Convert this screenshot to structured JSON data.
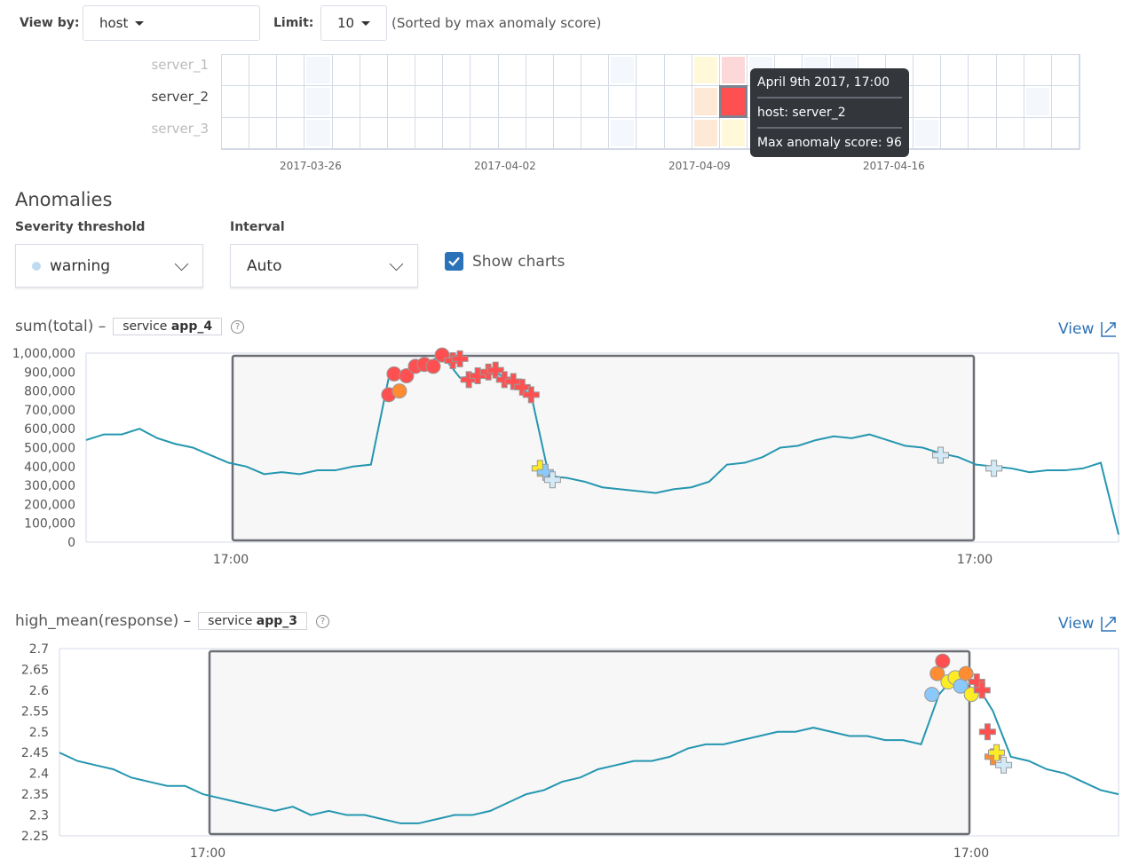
{
  "controls": {
    "view_by_label": "View by:",
    "view_by_value": "host",
    "limit_label": "Limit:",
    "limit_value": "10",
    "sorted_note": "(Sorted by max anomaly score)"
  },
  "heatmap": {
    "rows": [
      "server_1",
      "server_2",
      "server_3"
    ],
    "selected_row": "server_2",
    "columns": 31,
    "x_ticks": [
      "2017-03-26",
      "2017-04-02",
      "2017-04-09",
      "2017-04-16"
    ],
    "cells": [
      {
        "row": 0,
        "col": 3,
        "color": "#f4f8fc"
      },
      {
        "row": 1,
        "col": 3,
        "color": "#f4f8fc"
      },
      {
        "row": 2,
        "col": 3,
        "color": "#f4f8fc"
      },
      {
        "row": 0,
        "col": 14,
        "color": "#f4f8fc"
      },
      {
        "row": 2,
        "col": 14,
        "color": "#f4f8fc"
      },
      {
        "row": 0,
        "col": 17,
        "color": "#fff9d9"
      },
      {
        "row": 1,
        "col": 17,
        "color": "#fde9d6"
      },
      {
        "row": 2,
        "col": 17,
        "color": "#fde9d6"
      },
      {
        "row": 0,
        "col": 18,
        "color": "#fdd8d8"
      },
      {
        "row": 1,
        "col": 18,
        "color": "#fe5050"
      },
      {
        "row": 2,
        "col": 18,
        "color": "#fff9d9"
      },
      {
        "row": 0,
        "col": 19,
        "color": "#f4f8fc"
      },
      {
        "row": 0,
        "col": 21,
        "color": "#f4f8fc"
      },
      {
        "row": 0,
        "col": 22,
        "color": "#f4f8fc"
      },
      {
        "row": 2,
        "col": 25,
        "color": "#f4f8fc"
      },
      {
        "row": 1,
        "col": 29,
        "color": "#f4f8fc"
      }
    ],
    "tooltip": {
      "time": "April 9th 2017, 17:00",
      "entity": "host: server_2",
      "score": "Max anomaly score: 96"
    }
  },
  "anomalies": {
    "heading": "Anomalies",
    "severity_label": "Severity threshold",
    "severity_value": "warning",
    "severity_dot_color": "#bfdbf1",
    "interval_label": "Interval",
    "interval_value": "Auto",
    "show_charts_label": "Show charts",
    "show_charts_checked": true
  },
  "charts": [
    {
      "title": "sum(total) –",
      "entity_prefix": "service ",
      "entity_value": "app_4",
      "view_label": "View",
      "chart_data": {
        "type": "line",
        "ylim": [
          0,
          1000000
        ],
        "y_ticks": [
          "0",
          "100,000",
          "200,000",
          "300,000",
          "400,000",
          "500,000",
          "600,000",
          "700,000",
          "800,000",
          "900,000",
          "1,000,000"
        ],
        "x_ticks": [
          "17:00",
          "17:00"
        ],
        "values": [
          540000,
          570000,
          570000,
          600000,
          550000,
          520000,
          500000,
          460000,
          420000,
          400000,
          360000,
          370000,
          360000,
          380000,
          380000,
          400000,
          410000,
          870000,
          900000,
          940000,
          990000,
          870000,
          880000,
          900000,
          840000,
          780000,
          350000,
          340000,
          320000,
          290000,
          280000,
          270000,
          260000,
          280000,
          290000,
          320000,
          410000,
          420000,
          450000,
          500000,
          510000,
          540000,
          560000,
          550000,
          570000,
          540000,
          510000,
          500000,
          470000,
          450000,
          410000,
          400000,
          390000,
          370000,
          380000,
          380000,
          390000,
          420000,
          40000
        ],
        "markers": [
          {
            "i": 17,
            "y": 780000,
            "shape": "circle",
            "color": "#fe5050"
          },
          {
            "i": 17.3,
            "y": 890000,
            "shape": "circle",
            "color": "#fe5050"
          },
          {
            "i": 17.6,
            "y": 800000,
            "shape": "circle",
            "color": "#ff8c32"
          },
          {
            "i": 18,
            "y": 880000,
            "shape": "circle",
            "color": "#fe5050"
          },
          {
            "i": 18.5,
            "y": 930000,
            "shape": "circle",
            "color": "#fe5050"
          },
          {
            "i": 19,
            "y": 940000,
            "shape": "circle",
            "color": "#fe5050"
          },
          {
            "i": 19.5,
            "y": 930000,
            "shape": "circle",
            "color": "#fe5050"
          },
          {
            "i": 20,
            "y": 990000,
            "shape": "circle",
            "color": "#fe5050"
          },
          {
            "i": 20.6,
            "y": 960000,
            "shape": "cross",
            "color": "#fe5050"
          },
          {
            "i": 21,
            "y": 970000,
            "shape": "cross",
            "color": "#fe5050"
          },
          {
            "i": 21.5,
            "y": 860000,
            "shape": "cross",
            "color": "#fe5050"
          },
          {
            "i": 22,
            "y": 880000,
            "shape": "cross",
            "color": "#fe5050"
          },
          {
            "i": 22.6,
            "y": 900000,
            "shape": "cross",
            "color": "#fe5050"
          },
          {
            "i": 23,
            "y": 910000,
            "shape": "cross",
            "color": "#fe5050"
          },
          {
            "i": 23.5,
            "y": 860000,
            "shape": "cross",
            "color": "#fe5050"
          },
          {
            "i": 24,
            "y": 850000,
            "shape": "cross",
            "color": "#fe5050"
          },
          {
            "i": 24.5,
            "y": 820000,
            "shape": "cross",
            "color": "#fe5050"
          },
          {
            "i": 25,
            "y": 780000,
            "shape": "cross",
            "color": "#fe5050"
          },
          {
            "i": 25.5,
            "y": 390000,
            "shape": "cross",
            "color": "#fdec25"
          },
          {
            "i": 25.8,
            "y": 370000,
            "shape": "cross",
            "color": "#8bc8fb"
          },
          {
            "i": 26.2,
            "y": 330000,
            "shape": "cross",
            "color": "#d2e9f7"
          },
          {
            "i": 48,
            "y": 460000,
            "shape": "cross",
            "color": "#d2e9f7"
          },
          {
            "i": 51,
            "y": 390000,
            "shape": "cross",
            "color": "#d2e9f7"
          }
        ]
      }
    },
    {
      "title": "high_mean(response) –",
      "entity_prefix": "service ",
      "entity_value": "app_3",
      "view_label": "View",
      "chart_data": {
        "type": "line",
        "ylim": [
          2.25,
          2.7
        ],
        "y_ticks": [
          "2.25",
          "2.3",
          "2.35",
          "2.4",
          "2.45",
          "2.5",
          "2.55",
          "2.6",
          "2.65",
          "2.7"
        ],
        "x_ticks": [
          "17:00",
          "17:00"
        ],
        "values": [
          2.45,
          2.43,
          2.42,
          2.41,
          2.39,
          2.38,
          2.37,
          2.37,
          2.35,
          2.34,
          2.33,
          2.32,
          2.31,
          2.32,
          2.3,
          2.31,
          2.3,
          2.3,
          2.29,
          2.28,
          2.28,
          2.29,
          2.3,
          2.3,
          2.31,
          2.33,
          2.35,
          2.36,
          2.38,
          2.39,
          2.41,
          2.42,
          2.43,
          2.43,
          2.44,
          2.46,
          2.47,
          2.47,
          2.48,
          2.49,
          2.5,
          2.5,
          2.51,
          2.5,
          2.49,
          2.49,
          2.48,
          2.48,
          2.47,
          2.59,
          2.64,
          2.62,
          2.55,
          2.44,
          2.43,
          2.41,
          2.4,
          2.38,
          2.36,
          2.35
        ],
        "markers": [
          {
            "i": 48.6,
            "y": 2.59,
            "shape": "circle",
            "color": "#8bc8fb"
          },
          {
            "i": 48.9,
            "y": 2.64,
            "shape": "circle",
            "color": "#ff8c32"
          },
          {
            "i": 49.2,
            "y": 2.67,
            "shape": "circle",
            "color": "#fe5050"
          },
          {
            "i": 49.5,
            "y": 2.62,
            "shape": "circle",
            "color": "#fdec25"
          },
          {
            "i": 49.9,
            "y": 2.63,
            "shape": "circle",
            "color": "#fdec25"
          },
          {
            "i": 50.2,
            "y": 2.61,
            "shape": "circle",
            "color": "#8bc8fb"
          },
          {
            "i": 50.5,
            "y": 2.64,
            "shape": "circle",
            "color": "#ff8c32"
          },
          {
            "i": 50.8,
            "y": 2.59,
            "shape": "circle",
            "color": "#fdec25"
          },
          {
            "i": 51.1,
            "y": 2.62,
            "shape": "cross",
            "color": "#fe5050"
          },
          {
            "i": 51.4,
            "y": 2.6,
            "shape": "cross",
            "color": "#fe5050"
          },
          {
            "i": 51.7,
            "y": 2.5,
            "shape": "cross",
            "color": "#fe5050"
          },
          {
            "i": 52,
            "y": 2.44,
            "shape": "cross",
            "color": "#ff8c32"
          },
          {
            "i": 52.2,
            "y": 2.45,
            "shape": "cross",
            "color": "#fdec25"
          },
          {
            "i": 52.6,
            "y": 2.42,
            "shape": "cross",
            "color": "#d2e9f7"
          }
        ]
      }
    }
  ],
  "colors": {
    "line": "#2596b0",
    "accent": "#2b73b8"
  }
}
